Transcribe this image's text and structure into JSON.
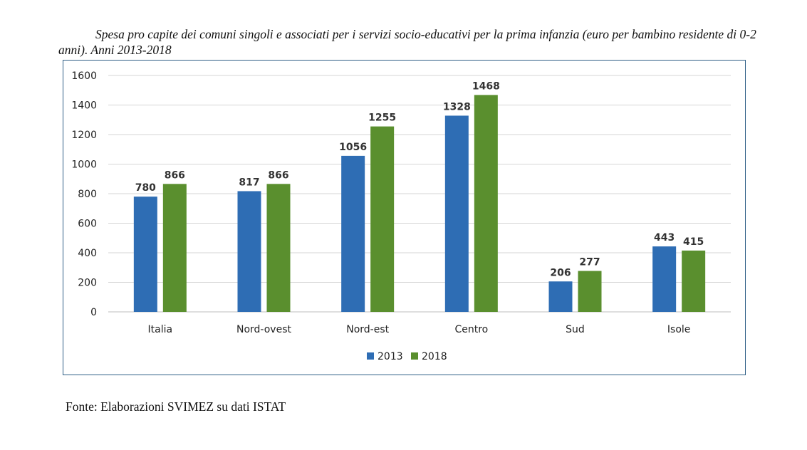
{
  "caption": {
    "title": "Spesa pro capite dei comuni singoli e associati per i servizi socio-educativi per la prima infanzia (euro per bambino residente di 0-2 anni). Anni 2013-2018",
    "source": "Fonte: Elaborazioni SVIMEZ su dati ISTAT"
  },
  "chart_data": {
    "type": "bar",
    "title": "Spesa pro capite dei comuni singoli e associati per i servizi socio-educativi per la prima infanzia (euro per bambino residente di 0-2 anni). Anni 2013-2018",
    "categories": [
      "Italia",
      "Nord-ovest",
      "Nord-est",
      "Centro",
      "Sud",
      "Isole"
    ],
    "series": [
      {
        "name": "2013",
        "color": "#2e6db4",
        "values": [
          780,
          817,
          1056,
          1328,
          206,
          443
        ]
      },
      {
        "name": "2018",
        "color": "#5a8f2e",
        "values": [
          866,
          866,
          1255,
          1468,
          277,
          415
        ]
      }
    ],
    "ylim": [
      0,
      1600
    ],
    "yticks": [
      0,
      200,
      400,
      600,
      800,
      1000,
      1200,
      1400,
      1600
    ],
    "grid": true,
    "legend": "bottom-center",
    "data_labels": true
  }
}
